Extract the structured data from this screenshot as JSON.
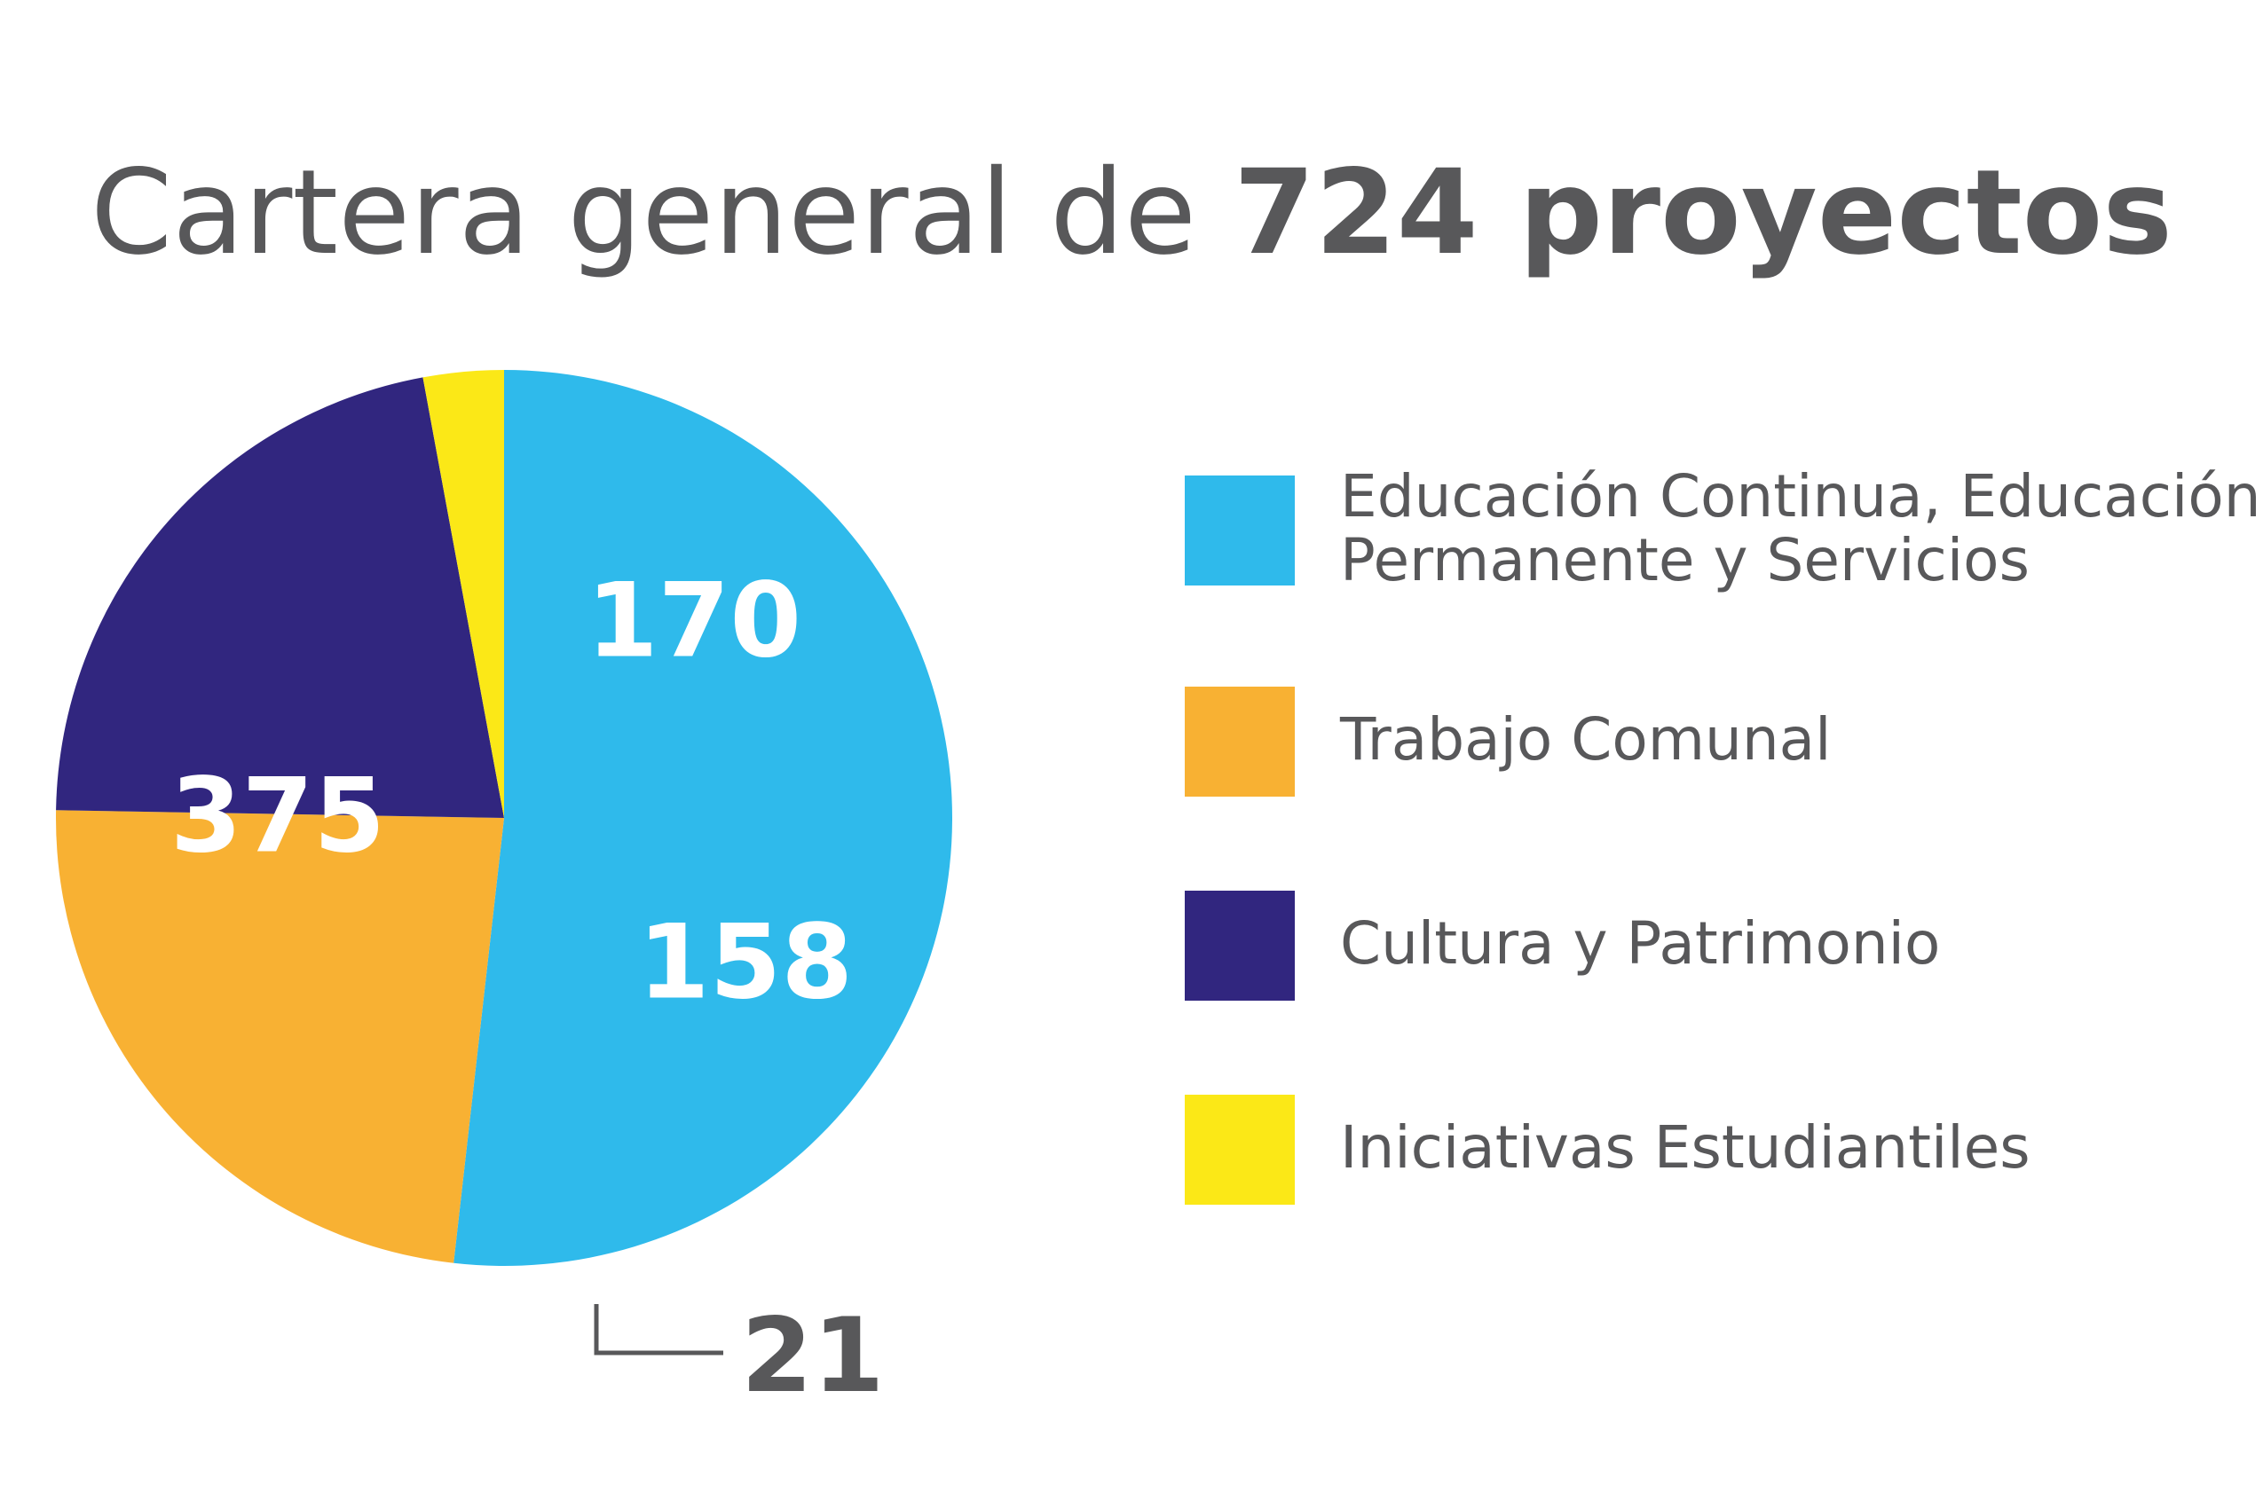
{
  "title": {
    "regular": "Cartera general de",
    "bold": "724 proyectos"
  },
  "chart_data": {
    "type": "pie",
    "title": "Cartera general de 724 proyectos",
    "total": 724,
    "slices": [
      {
        "label": "Educación Continua, Educación Permanente y Servicios",
        "value": 375,
        "value_label": "375",
        "color": "#2fbaeb"
      },
      {
        "label": "Trabajo Comunal",
        "value": 170,
        "value_label": "170",
        "color": "#f8b133"
      },
      {
        "label": "Cultura y Patrimonio",
        "value": 158,
        "value_label": "158",
        "color": "#31267f"
      },
      {
        "label": "Iniciativas Estudiantiles",
        "value": 21,
        "value_label": "21",
        "color": "#fbe817"
      }
    ],
    "legend_position": "right",
    "legend": [
      {
        "lines": [
          "Educación Continua, Educación",
          "Permanente y Servicios"
        ],
        "color": "#2fbaeb"
      },
      {
        "lines": [
          "Trabajo Comunal"
        ],
        "color": "#f8b133"
      },
      {
        "lines": [
          "Cultura y Patrimonio"
        ],
        "color": "#31267f"
      },
      {
        "lines": [
          "Iniciativas Estudiantiles"
        ],
        "color": "#fbe817"
      }
    ]
  }
}
